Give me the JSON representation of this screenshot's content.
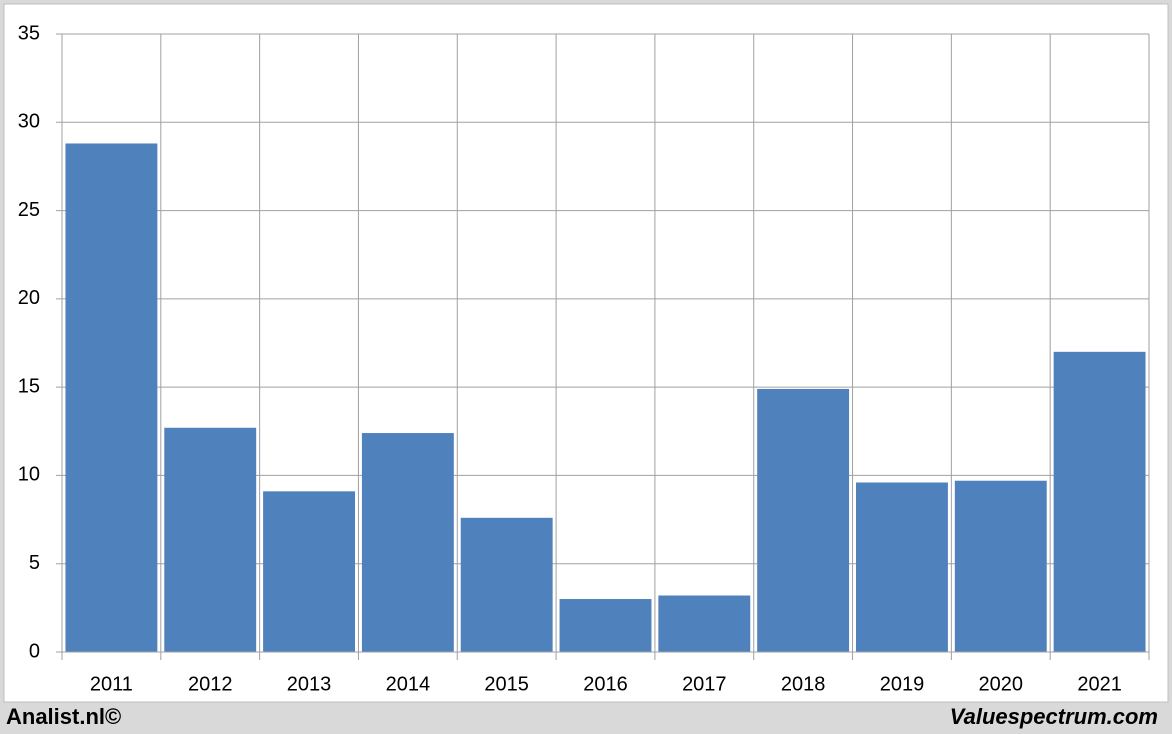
{
  "chart_data": {
    "type": "bar",
    "categories": [
      "2011",
      "2012",
      "2013",
      "2014",
      "2015",
      "2016",
      "2017",
      "2018",
      "2019",
      "2020",
      "2021"
    ],
    "values": [
      28.8,
      12.7,
      9.1,
      12.4,
      7.6,
      3.0,
      3.2,
      14.9,
      9.6,
      9.7,
      17.0
    ],
    "color": "#4f81bd",
    "ylim": [
      0,
      35
    ],
    "yticks": [
      0,
      5,
      10,
      15,
      20,
      25,
      30,
      35
    ],
    "grid": true
  },
  "footer": {
    "left": "Analist.nl©",
    "right": "Valuespectrum.com"
  }
}
